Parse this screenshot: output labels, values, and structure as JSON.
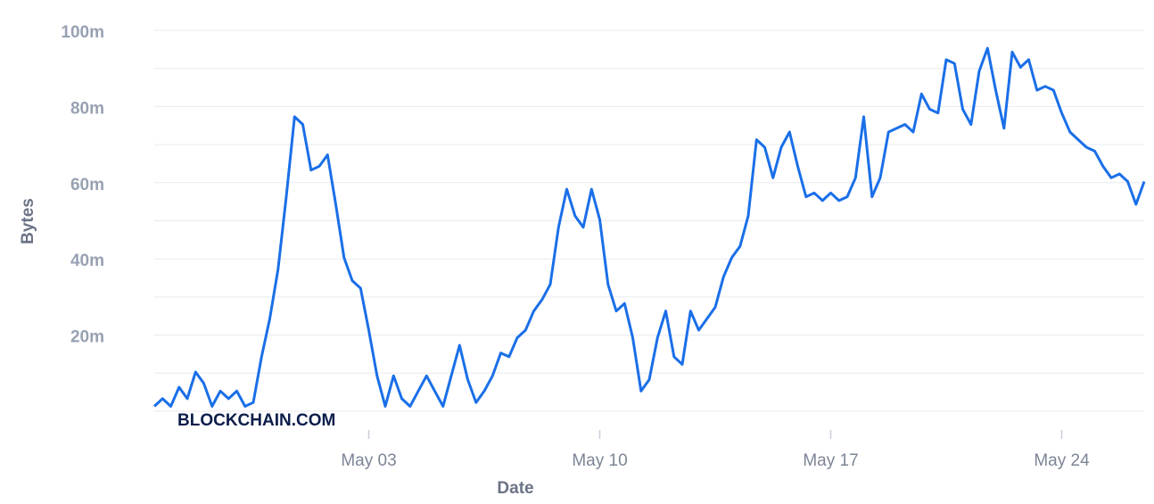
{
  "chart_data": {
    "type": "line",
    "x_label": "Date",
    "y_label": "Bytes",
    "watermark": "BLOCKCHAIN.COM",
    "categories": [
      null,
      null,
      null,
      null,
      null,
      null,
      null,
      null,
      null,
      null,
      null,
      null,
      null,
      null,
      null,
      null,
      null,
      null,
      null,
      null,
      null,
      null,
      null,
      null,
      null,
      null,
      "May 03",
      null,
      null,
      null,
      null,
      null,
      null,
      null,
      null,
      null,
      null,
      null,
      null,
      null,
      null,
      null,
      null,
      null,
      null,
      null,
      null,
      null,
      null,
      null,
      null,
      null,
      null,
      null,
      "May 10",
      null,
      null,
      null,
      null,
      null,
      null,
      null,
      null,
      null,
      null,
      null,
      null,
      null,
      null,
      null,
      null,
      null,
      null,
      null,
      null,
      null,
      null,
      null,
      null,
      null,
      null,
      null,
      "May 17",
      null,
      null,
      null,
      null,
      null,
      null,
      null,
      null,
      null,
      null,
      null,
      null,
      null,
      null,
      null,
      null,
      null,
      null,
      null,
      null,
      null,
      null,
      null,
      null,
      null,
      null,
      null,
      "May 24",
      null,
      null,
      null,
      null,
      null,
      null,
      null,
      null,
      null,
      null
    ],
    "series": [
      {
        "name": "Bytes",
        "color": "#1a6fe8",
        "values": [
          2000000,
          4000000,
          2000000,
          7000000,
          4000000,
          11000000,
          8000000,
          2000000,
          6000000,
          4000000,
          6000000,
          2000000,
          3000000,
          15000000,
          25000000,
          38000000,
          57000000,
          78000000,
          76000000,
          64000000,
          65000000,
          68000000,
          55000000,
          41000000,
          35000000,
          33000000,
          22000000,
          10000000,
          2000000,
          10000000,
          4000000,
          2000000,
          6000000,
          10000000,
          6000000,
          2000000,
          10000000,
          18000000,
          9000000,
          3000000,
          6000000,
          10000000,
          16000000,
          15000000,
          20000000,
          22000000,
          27000000,
          30000000,
          34000000,
          49000000,
          59000000,
          52000000,
          49000000,
          59000000,
          51000000,
          34000000,
          27000000,
          29000000,
          20000000,
          6000000,
          9000000,
          20000000,
          27000000,
          15000000,
          13000000,
          27000000,
          22000000,
          25000000,
          28000000,
          36000000,
          41000000,
          44000000,
          52000000,
          72000000,
          70000000,
          62000000,
          70000000,
          74000000,
          65000000,
          57000000,
          58000000,
          56000000,
          58000000,
          56000000,
          57000000,
          62000000,
          78000000,
          57000000,
          62000000,
          74000000,
          75000000,
          76000000,
          74000000,
          84000000,
          80000000,
          79000000,
          93000000,
          92000000,
          80000000,
          76000000,
          90000000,
          96000000,
          85000000,
          75000000,
          95000000,
          91000000,
          93000000,
          85000000,
          86000000,
          85000000,
          79000000,
          74000000,
          72000000,
          70000000,
          69000000,
          65000000,
          62000000,
          63000000,
          61000000,
          55000000,
          61000000
        ]
      }
    ],
    "ylim": [
      0,
      100000000
    ],
    "yticks": [
      {
        "value": 20000000,
        "label": "20m"
      },
      {
        "value": 40000000,
        "label": "40m"
      },
      {
        "value": 60000000,
        "label": "60m"
      },
      {
        "value": 80000000,
        "label": "80m"
      },
      {
        "value": 100000000,
        "label": "100m"
      }
    ],
    "ygrid": [
      0,
      10000000,
      20000000,
      30000000,
      40000000,
      50000000,
      60000000,
      70000000,
      80000000,
      90000000,
      100000000
    ],
    "grid": true
  }
}
